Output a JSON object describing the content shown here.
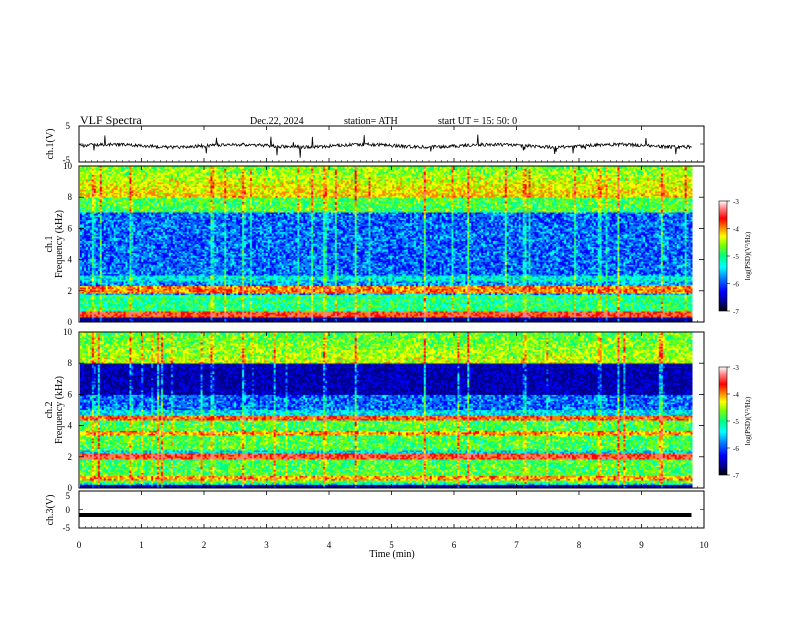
{
  "header": {
    "title": "VLF  Spectra",
    "date": "Dec.22, 2024",
    "station": "station= ATH",
    "start_ut": "start  UT  =    15: 50: 0"
  },
  "chart_data": [
    {
      "type": "line",
      "panel": "ch1-waveform",
      "ylabel": "ch.1(V)",
      "ylim": [
        -5,
        5
      ],
      "yticks": [
        "5",
        "-5"
      ],
      "xlim": [
        0,
        10
      ],
      "series": [
        {
          "values_summary": "noisy waveform around -0.5 V, amplitude about ±0.6 V with sporadic spikes to ±3 V, ending at 9.8 min"
        }
      ],
      "line_color": "#000000"
    },
    {
      "type": "heatmap",
      "panel": "ch1-spectrogram",
      "ylabel_line1": "ch.1",
      "ylabel_line2": "Frequency  (kHz)",
      "ylim": [
        0,
        10
      ],
      "yticks": [
        "0",
        "2",
        "4",
        "6",
        "8",
        "10"
      ],
      "xlim": [
        0,
        10
      ],
      "data_end_min": 9.8,
      "colorbar": {
        "label": "log(PSD)(V²/Hz)",
        "range": [
          -7,
          -3
        ],
        "ticks": [
          "-3",
          "-4",
          "-5",
          "-6",
          "-7"
        ]
      },
      "features": "strong emission bands near 2 kHz and 0.5 kHz; vertical impulsive spikes (sferics) at about 0.2, 0.8, 2.1, 2.6, 3.9, 4.4, 5.5, 6.2, 7.1, 8.3, 8.6, 9.3 min; high PSD (yellow–red) 8–10 kHz, low PSD (blue) 3–7 kHz"
    },
    {
      "type": "heatmap",
      "panel": "ch2-spectrogram",
      "ylabel_line1": "ch.2",
      "ylabel_line2": "Frequency  (kHz)",
      "ylim": [
        0,
        10
      ],
      "yticks": [
        "0",
        "2",
        "4",
        "6",
        "8",
        "10"
      ],
      "xlim": [
        0,
        10
      ],
      "data_end_min": 9.8,
      "colorbar": {
        "label": "log(PSD)(V²/Hz)",
        "range": [
          -7,
          -3
        ],
        "ticks": [
          "-3",
          "-4",
          "-5",
          "-6",
          "-7"
        ]
      },
      "features": "strong emission bands near 2 kHz, 3.5 kHz and 4.5 kHz; deep blue band 6–7.5 kHz; vertical impulsive spikes as in ch.1"
    },
    {
      "type": "line",
      "panel": "ch3-waveform",
      "ylabel": "ch.3(V)",
      "ylim": [
        -5,
        5
      ],
      "yticks": [
        "5",
        "0",
        "-5"
      ],
      "xlim": [
        0,
        10
      ],
      "series": [
        {
          "values_summary": "flat constant at about -1.5 V from 0 to 9.8 min"
        }
      ],
      "line_color": "#000000"
    }
  ],
  "x_axis": {
    "label": "Time  (min)",
    "ticks": [
      "0",
      "1",
      "2",
      "3",
      "4",
      "5",
      "6",
      "7",
      "8",
      "9",
      "10"
    ]
  },
  "colorscale": [
    "#000000",
    "#00008b",
    "#0000ff",
    "#0080ff",
    "#00ffff",
    "#00ff80",
    "#80ff00",
    "#ffff00",
    "#ff8000",
    "#ff0000",
    "#ff8080",
    "#ffffff"
  ]
}
